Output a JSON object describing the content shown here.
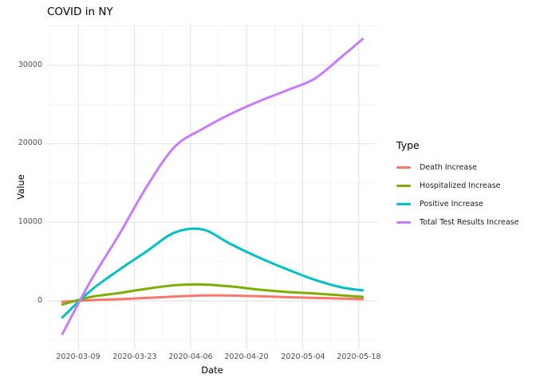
{
  "chart_data": {
    "type": "line",
    "title": "COVID in NY",
    "xlabel": "Date",
    "ylabel": "Value",
    "legend_title": "Type",
    "legend_position": "right",
    "grid": true,
    "x": [
      "2020-03-05",
      "2020-03-12",
      "2020-03-19",
      "2020-03-26",
      "2020-04-02",
      "2020-04-09",
      "2020-04-16",
      "2020-04-23",
      "2020-04-30",
      "2020-05-07",
      "2020-05-14",
      "2020-05-19"
    ],
    "x_tick_labels": [
      "2020-03-09",
      "2020-03-23",
      "2020-04-06",
      "2020-04-20",
      "2020-05-04",
      "2020-05-18"
    ],
    "y_ticks": [
      "0",
      "10000",
      "20000",
      "30000"
    ],
    "ylim": [
      -6100,
      35300
    ],
    "series": [
      {
        "name": "Death Increase",
        "color": "#F8766D",
        "values": [
          -100,
          100,
          220,
          380,
          560,
          700,
          690,
          600,
          490,
          390,
          300,
          230
        ]
      },
      {
        "name": "Hospitalized Increase",
        "color": "#7CAE00",
        "values": [
          -450,
          500,
          1000,
          1550,
          2000,
          2100,
          1850,
          1450,
          1150,
          950,
          700,
          530
        ]
      },
      {
        "name": "Positive Increase",
        "color": "#00BFC4",
        "values": [
          -2100,
          1300,
          3900,
          6300,
          8700,
          9100,
          7250,
          5550,
          4050,
          2700,
          1700,
          1350
        ]
      },
      {
        "name": "Total Test Results Increase",
        "color": "#C77CFF",
        "values": [
          -4200,
          2500,
          8300,
          14500,
          19600,
          21900,
          23800,
          25400,
          26800,
          28300,
          31200,
          33350
        ]
      }
    ],
    "grid_major_color": "#e3e3e3",
    "grid_minor_color": "#f0f0f0"
  }
}
